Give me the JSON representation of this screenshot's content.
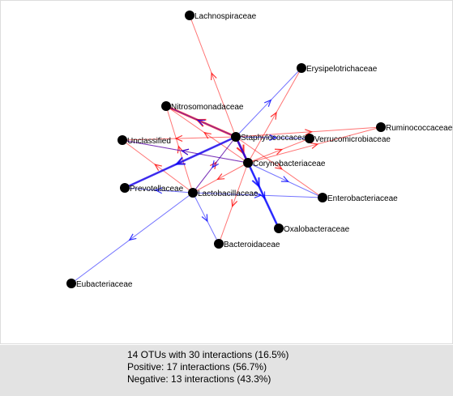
{
  "network": {
    "colors": {
      "positive": "#ff0000",
      "negative": "#0000ff",
      "node": "#000000"
    },
    "nodes": [
      {
        "id": "lachno",
        "label": "Lachnospiraceae"
      },
      {
        "id": "erysip",
        "label": "Erysipelotrichaceae"
      },
      {
        "id": "nitroso",
        "label": "Nitrosomonadaceae"
      },
      {
        "id": "unclass",
        "label": "Unclassified"
      },
      {
        "id": "staph",
        "label": "Staphylococcaceae"
      },
      {
        "id": "verruco",
        "label": "Verrucomicrobiaceae"
      },
      {
        "id": "rumino",
        "label": "Ruminococcaceae"
      },
      {
        "id": "coryne",
        "label": "Corynebacteriaceae"
      },
      {
        "id": "prevo",
        "label": "Prevotellaceae"
      },
      {
        "id": "lacto",
        "label": "Lactobacillaceae"
      },
      {
        "id": "entero",
        "label": "Enterobacteriaceae"
      },
      {
        "id": "oxalo",
        "label": "Oxalobacteraceae"
      },
      {
        "id": "bactero",
        "label": "Bacteroidaceae"
      },
      {
        "id": "eubact",
        "label": "Eubacteriaceae"
      }
    ],
    "edges": [
      {
        "from": "staph",
        "to": "lachno",
        "sign": "positive"
      },
      {
        "from": "staph",
        "to": "nitroso",
        "sign": "positive",
        "strong": true
      },
      {
        "from": "staph",
        "to": "unclass",
        "sign": "positive"
      },
      {
        "from": "staph",
        "to": "prevo",
        "sign": "positive"
      },
      {
        "from": "staph",
        "to": "rumino",
        "sign": "positive"
      },
      {
        "from": "staph",
        "to": "entero",
        "sign": "positive"
      },
      {
        "from": "staph",
        "to": "coryne",
        "sign": "positive",
        "strong": true
      },
      {
        "from": "coryne",
        "to": "nitroso",
        "sign": "positive"
      },
      {
        "from": "coryne",
        "to": "unclass",
        "sign": "positive"
      },
      {
        "from": "coryne",
        "to": "erysip",
        "sign": "positive"
      },
      {
        "from": "coryne",
        "to": "verruco",
        "sign": "positive"
      },
      {
        "from": "coryne",
        "to": "bactero",
        "sign": "positive"
      },
      {
        "from": "coryne",
        "to": "rumino",
        "sign": "positive"
      },
      {
        "from": "lacto",
        "to": "nitroso",
        "sign": "positive"
      },
      {
        "from": "lacto",
        "to": "unclass",
        "sign": "positive"
      },
      {
        "from": "lacto",
        "to": "staph",
        "sign": "positive"
      },
      {
        "from": "coryne",
        "to": "lacto",
        "sign": "positive"
      },
      {
        "from": "staph",
        "to": "prevo",
        "sign": "negative",
        "strong": true
      },
      {
        "from": "staph",
        "to": "oxalo",
        "sign": "negative",
        "strong": true
      },
      {
        "from": "staph",
        "to": "erysip",
        "sign": "negative"
      },
      {
        "from": "staph",
        "to": "lacto",
        "sign": "negative"
      },
      {
        "from": "staph",
        "to": "nitroso",
        "sign": "negative"
      },
      {
        "from": "staph",
        "to": "verruco",
        "sign": "negative"
      },
      {
        "from": "coryne",
        "to": "unclass",
        "sign": "negative"
      },
      {
        "from": "coryne",
        "to": "entero",
        "sign": "negative"
      },
      {
        "from": "coryne",
        "to": "oxalo",
        "sign": "negative"
      },
      {
        "from": "lacto",
        "to": "prevo",
        "sign": "negative"
      },
      {
        "from": "lacto",
        "to": "entero",
        "sign": "negative"
      },
      {
        "from": "lacto",
        "to": "bactero",
        "sign": "negative"
      },
      {
        "from": "lacto",
        "to": "eubact",
        "sign": "negative"
      }
    ]
  },
  "info": {
    "summary": "14 OTUs with 30 interactions (16.5%)",
    "positive": "Positive: 17 interactions (56.7%)",
    "negative": "Negative: 13 interactions (43.3%)"
  }
}
